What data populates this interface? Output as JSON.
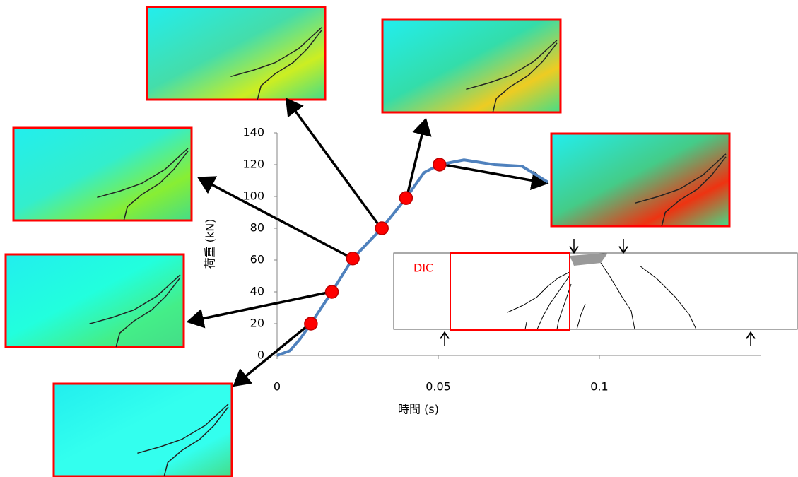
{
  "chart_data": {
    "type": "line",
    "x_label": "時間 (s)",
    "y_label": "荷重 (kN)",
    "annotation": "DIC",
    "x": [
      0,
      0.004,
      0.007,
      0.0105,
      0.017,
      0.0235,
      0.0325,
      0.04,
      0.0456,
      0.0504,
      0.058,
      0.0675,
      0.076,
      0.084
    ],
    "series": [
      {
        "color": "#4f81bd",
        "values": [
          0,
          3,
          10,
          20,
          40,
          61,
          80,
          99,
          115,
          120,
          123,
          120,
          119,
          109
        ]
      }
    ],
    "markers": {
      "color": "#ff0000",
      "x": [
        0.0105,
        0.017,
        0.0235,
        0.0325,
        0.04,
        0.0504
      ],
      "values": [
        20,
        40,
        61,
        80,
        99,
        120
      ]
    },
    "xlim": [
      0,
      0.15
    ],
    "ylim": [
      0,
      140
    ],
    "xticks": [
      0,
      0.05,
      0.1
    ],
    "yticks": [
      0,
      20,
      40,
      60,
      80,
      100,
      120,
      140
    ]
  }
}
